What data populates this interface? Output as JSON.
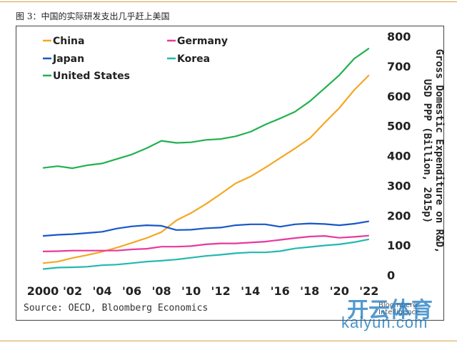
{
  "caption": "图 3：中国的实际研发支出几乎赶上美国",
  "source": "Source: OECD, Bloomberg Economics",
  "brand": "Bloomberg Intelligence",
  "watermark": {
    "cn": "开云体育",
    "url": "kaiyun.com"
  },
  "chart_data": {
    "type": "line",
    "ylabel": "Gross Domestic Expenditure on R&D, USD PPP (Billion, 2015p)",
    "ylim": [
      0,
      800
    ],
    "yticks": [
      0,
      100,
      200,
      300,
      400,
      500,
      600,
      700,
      800
    ],
    "xticks": [
      {
        "year": 2000,
        "label": "2000"
      },
      {
        "year": 2002,
        "label": "'02"
      },
      {
        "year": 2004,
        "label": "'04"
      },
      {
        "year": 2006,
        "label": "'06"
      },
      {
        "year": 2008,
        "label": "'08"
      },
      {
        "year": 2010,
        "label": "'10"
      },
      {
        "year": 2012,
        "label": "'12"
      },
      {
        "year": 2014,
        "label": "'14"
      },
      {
        "year": 2016,
        "label": "'16"
      },
      {
        "year": 2018,
        "label": "'18"
      },
      {
        "year": 2020,
        "label": "'20"
      },
      {
        "year": 2022,
        "label": "'22"
      }
    ],
    "x": [
      2000,
      2001,
      2002,
      2003,
      2004,
      2005,
      2006,
      2007,
      2008,
      2009,
      2010,
      2011,
      2012,
      2013,
      2014,
      2015,
      2016,
      2017,
      2018,
      2019,
      2020,
      2021,
      2022
    ],
    "series": [
      {
        "name": "China",
        "color": "#f5a623",
        "values": [
          40,
          45,
          57,
          67,
          78,
          92,
          108,
          124,
          144,
          183,
          208,
          238,
          272,
          307,
          330,
          360,
          392,
          424,
          458,
          510,
          560,
          620,
          670
        ]
      },
      {
        "name": "Germany",
        "color": "#e8399c",
        "values": [
          79,
          80,
          82,
          82,
          82,
          82,
          86,
          88,
          95,
          95,
          97,
          103,
          106,
          106,
          109,
          112,
          118,
          124,
          129,
          131,
          125,
          128,
          132
        ]
      },
      {
        "name": "Japan",
        "color": "#1757c9",
        "values": [
          131,
          135,
          137,
          141,
          145,
          156,
          163,
          167,
          165,
          151,
          152,
          157,
          159,
          167,
          170,
          170,
          162,
          170,
          173,
          171,
          167,
          172,
          180
        ]
      },
      {
        "name": "Korea",
        "color": "#22b8b0",
        "values": [
          20,
          25,
          26,
          28,
          33,
          35,
          40,
          45,
          48,
          52,
          58,
          64,
          68,
          73,
          76,
          76,
          80,
          89,
          94,
          99,
          103,
          110,
          120
        ]
      },
      {
        "name": "United States",
        "color": "#21b14f",
        "values": [
          359,
          365,
          358,
          368,
          374,
          389,
          404,
          425,
          450,
          443,
          445,
          453,
          456,
          465,
          480,
          504,
          525,
          547,
          582,
          626,
          670,
          725,
          760
        ]
      }
    ]
  }
}
